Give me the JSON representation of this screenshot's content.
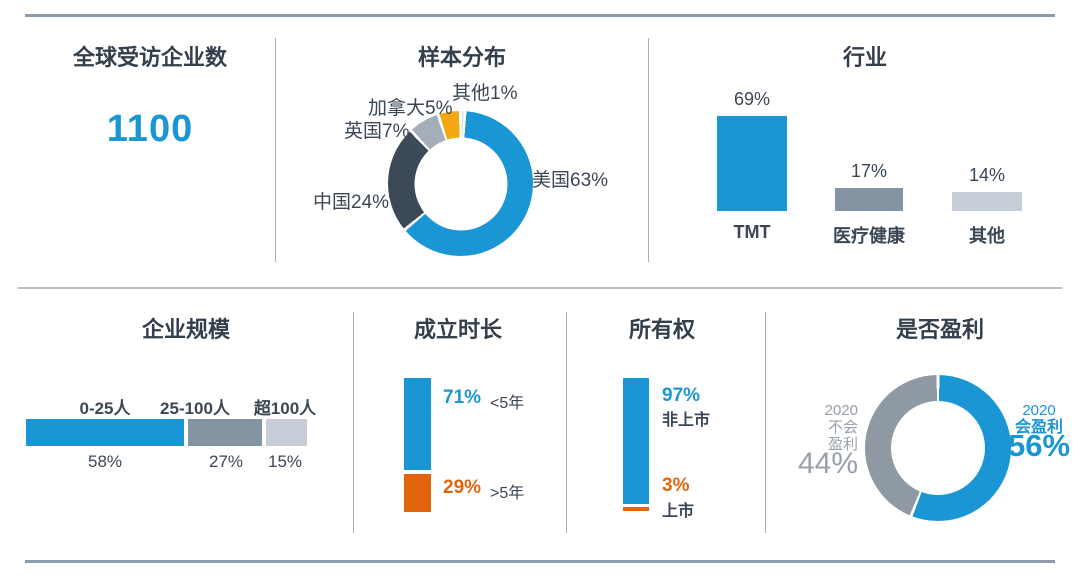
{
  "colors": {
    "blue": "#1b96d5",
    "dark_slate": "#3c4a57",
    "steel_gray": "#a4aeb9",
    "mid_gray": "#8494a2",
    "light_gray": "#c7cdd6",
    "pale_gray": "#dcdfe3",
    "amber": "#f3a712",
    "orange": "#e2650e",
    "donut_gray": "#8e99a4",
    "text_dark": "#333f4b",
    "divider": "#a6aeb6",
    "border": "#8d9cab"
  },
  "panels": {
    "total": {
      "title": "全球受访企业数",
      "value": "1100"
    },
    "sample": {
      "title": "样本分布",
      "labels": {
        "other": "其他1%",
        "canada": "加拿大5%",
        "uk": "英国7%",
        "china": "中国24%",
        "usa": "美国63%"
      }
    },
    "industry": {
      "title": "行业",
      "bars": [
        {
          "value_label": "69%",
          "name": "TMT"
        },
        {
          "value_label": "17%",
          "name": "医疗健康"
        },
        {
          "value_label": "14%",
          "name": "其他"
        }
      ]
    },
    "size": {
      "title": "企业规模",
      "segments": [
        {
          "name": "0-25人",
          "value_label": "58%"
        },
        {
          "name": "25-100人",
          "value_label": "27%"
        },
        {
          "name": "超100人",
          "value_label": "15%"
        }
      ]
    },
    "age": {
      "title": "成立时长",
      "items": [
        {
          "value_label": "71%",
          "name": "<5年"
        },
        {
          "value_label": "29%",
          "name": ">5年"
        }
      ]
    },
    "ownership": {
      "title": "所有权",
      "items": [
        {
          "value_label": "97%",
          "name": "非上市"
        },
        {
          "value_label": "3%",
          "name": "上市"
        }
      ]
    },
    "profit": {
      "title": "是否盈利",
      "left": {
        "line1": "2020",
        "line2": "不会",
        "line3": "盈利",
        "value_label": "44%"
      },
      "right": {
        "line1": "2020",
        "line2": "会盈利",
        "value_label": "56%"
      }
    }
  },
  "chart_data": [
    {
      "id": "total",
      "type": "table",
      "title": "全球受访企业数",
      "value": 1100
    },
    {
      "id": "sample",
      "type": "pie",
      "title": "样本分布",
      "donut": true,
      "note": "slices drawn clockwise from 12 o'clock",
      "slices": [
        {
          "label": "其他",
          "value": 1,
          "color": "#dcdfe3"
        },
        {
          "label": "美国",
          "value": 63,
          "color": "#1b96d5"
        },
        {
          "label": "中国",
          "value": 24,
          "color": "#3c4a57"
        },
        {
          "label": "英国",
          "value": 7,
          "color": "#a4aeb9"
        },
        {
          "label": "加拿大",
          "value": 5,
          "color": "#f3a712"
        }
      ]
    },
    {
      "id": "industry",
      "type": "bar",
      "title": "行业",
      "unit": "%",
      "categories": [
        "TMT",
        "医疗健康",
        "其他"
      ],
      "values": [
        69,
        17,
        14
      ],
      "colors": [
        "#1b96d5",
        "#8494a2",
        "#c7cdd6"
      ],
      "ylim": [
        0,
        69
      ]
    },
    {
      "id": "size",
      "type": "bar",
      "orientation": "horizontal-stacked",
      "title": "企业规模",
      "unit": "%",
      "categories": [
        "0-25人",
        "25-100人",
        "超100人"
      ],
      "values": [
        58,
        27,
        15
      ],
      "colors": [
        "#1b96d5",
        "#8494a2",
        "#c7cdd6"
      ]
    },
    {
      "id": "age",
      "type": "bar",
      "orientation": "vertical-stacked",
      "title": "成立时长",
      "unit": "%",
      "categories": [
        "<5年",
        ">5年"
      ],
      "values": [
        71,
        29
      ],
      "colors": [
        "#1b96d5",
        "#e2650e"
      ]
    },
    {
      "id": "ownership",
      "type": "bar",
      "orientation": "vertical-stacked",
      "title": "所有权",
      "unit": "%",
      "categories": [
        "非上市",
        "上市"
      ],
      "values": [
        97,
        3
      ],
      "colors": [
        "#1b96d5",
        "#e2650e"
      ]
    },
    {
      "id": "profit",
      "type": "pie",
      "title": "是否盈利",
      "donut": true,
      "note": "slices drawn clockwise from 12 o'clock",
      "slices": [
        {
          "label": "2020会盈利",
          "value": 56,
          "color": "#1b96d5"
        },
        {
          "label": "2020不会盈利",
          "value": 44,
          "color": "#8e99a4"
        }
      ]
    }
  ]
}
